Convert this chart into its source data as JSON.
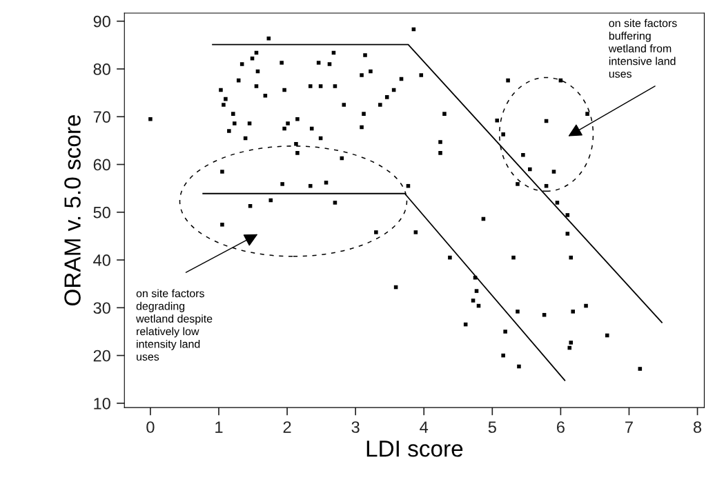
{
  "chart_data": {
    "type": "scatter",
    "xlabel": "LDI score",
    "ylabel": "ORAM v. 5.0 score",
    "xlim": [
      -0.38,
      8.1
    ],
    "ylim": [
      9.1,
      91.7
    ],
    "xticks": [
      0,
      1,
      2,
      3,
      4,
      5,
      6,
      7,
      8
    ],
    "yticks": [
      10,
      20,
      30,
      40,
      50,
      60,
      70,
      80,
      90
    ],
    "grid": false,
    "legend": false,
    "marker": "square",
    "series": [
      {
        "color": "#000000",
        "x": [
          0.0,
          1.73,
          1.55,
          1.49,
          1.34,
          1.92,
          2.46,
          1.57,
          1.29,
          1.55,
          2.34,
          2.49,
          1.03,
          1.96,
          1.68,
          1.1,
          1.07,
          1.21,
          1.23,
          1.45,
          2.01,
          2.15,
          1.15,
          1.96,
          2.36,
          1.39,
          2.49,
          2.13,
          2.15,
          1.05,
          1.93,
          2.34,
          1.76,
          1.46,
          1.05,
          3.85,
          2.68,
          3.14,
          2.62,
          3.09,
          3.22,
          3.67,
          3.96,
          2.7,
          3.56,
          3.46,
          2.83,
          3.36,
          3.12,
          4.3,
          3.09,
          4.24,
          4.24,
          2.8,
          2.57,
          3.77,
          2.7,
          5.07,
          5.23,
          6.0,
          6.39,
          5.79,
          5.16,
          5.45,
          5.55,
          5.9,
          5.37,
          5.79,
          5.95,
          6.1,
          3.3,
          3.88,
          3.59,
          4.87,
          6.1,
          4.38,
          5.31,
          6.15,
          4.75,
          4.77,
          4.72,
          4.8,
          5.37,
          5.76,
          6.18,
          6.37,
          4.61,
          5.19,
          6.68,
          6.15,
          6.13,
          5.16,
          5.39,
          7.16
        ],
        "values": [
          69.5,
          86.4,
          83.4,
          82.2,
          81.0,
          81.3,
          81.3,
          79.5,
          77.6,
          76.4,
          76.4,
          76.4,
          75.6,
          75.6,
          74.4,
          73.7,
          72.5,
          70.6,
          68.6,
          68.6,
          68.6,
          69.5,
          67.0,
          67.5,
          67.5,
          65.5,
          65.5,
          64.3,
          62.4,
          58.5,
          55.9,
          55.5,
          52.5,
          51.3,
          47.4,
          88.3,
          83.4,
          82.9,
          81.0,
          78.7,
          79.5,
          77.9,
          78.7,
          76.4,
          75.6,
          74.1,
          72.5,
          72.5,
          70.6,
          70.6,
          67.8,
          64.7,
          62.4,
          61.3,
          56.2,
          55.5,
          52.0,
          69.2,
          77.6,
          77.6,
          70.6,
          69.1,
          66.3,
          62.0,
          59.0,
          58.5,
          55.9,
          55.5,
          52.0,
          49.4,
          45.8,
          45.8,
          34.3,
          48.6,
          45.5,
          40.5,
          40.5,
          40.5,
          36.3,
          33.5,
          31.5,
          30.4,
          29.2,
          28.5,
          29.2,
          30.4,
          26.5,
          25.0,
          24.2,
          22.7,
          21.6,
          20.0,
          17.7,
          17.2
        ]
      },
      {
        "type": "line",
        "color": "#000000",
        "marker": "none",
        "x": [
          0.91,
          3.77,
          7.48
        ],
        "values": [
          85.1,
          85.1,
          26.9
        ]
      },
      {
        "type": "line",
        "color": "#000000",
        "marker": "none",
        "x": [
          0.77,
          3.72,
          6.06
        ],
        "values": [
          53.9,
          53.9,
          14.8
        ]
      }
    ],
    "annotations": [
      "on site factors\ndegrading\nwetland despite\nrelatively low\nintensity land\nuses",
      "on site factors\nbuffering\nwetland from\nintensive land\nuses"
    ]
  }
}
